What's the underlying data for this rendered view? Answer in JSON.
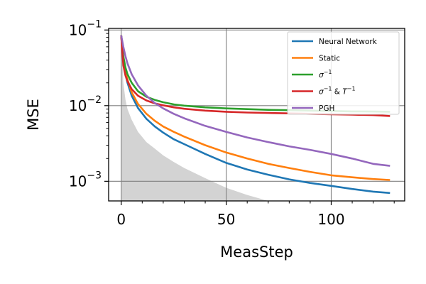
{
  "chart_data": {
    "type": "line",
    "xlabel": "MeasStep",
    "ylabel": "MSE",
    "xscale": "linear",
    "yscale": "log",
    "xlim": [
      -6,
      135
    ],
    "ylim": [
      0.00055,
      0.105
    ],
    "xticks": [
      0,
      50,
      100
    ],
    "xtick_labels": [
      "0",
      "50",
      "100"
    ],
    "yticks": [
      0.001,
      0.01,
      0.1
    ],
    "ytick_labels": [
      {
        "base": "10",
        "exp": "−3"
      },
      {
        "base": "10",
        "exp": "−2"
      },
      {
        "base": "10",
        "exp": "−1"
      }
    ],
    "grid": true,
    "legend_position": "top-right",
    "shaded_region": {
      "label": "",
      "color": "#d3d3d3",
      "x": [
        0,
        1,
        2,
        3,
        5,
        8,
        12,
        16,
        20,
        25,
        30,
        40,
        50,
        60,
        70
      ],
      "y": [
        0.085,
        0.02,
        0.012,
        0.009,
        0.0065,
        0.0045,
        0.0033,
        0.0027,
        0.0022,
        0.0018,
        0.0015,
        0.0011,
        0.00082,
        0.00066,
        0.00055
      ]
    },
    "series": [
      {
        "name": "Neural Network",
        "legend_label": {
          "text": "Neural Network"
        },
        "color": "#1f77b4",
        "x": [
          0,
          1,
          2,
          3,
          5,
          8,
          12,
          16,
          20,
          25,
          30,
          40,
          50,
          60,
          70,
          80,
          90,
          100,
          110,
          120,
          128
        ],
        "y": [
          0.085,
          0.04,
          0.026,
          0.02,
          0.0135,
          0.0093,
          0.0067,
          0.0053,
          0.0044,
          0.0036,
          0.0031,
          0.0023,
          0.00175,
          0.00143,
          0.00122,
          0.00106,
          0.00095,
          0.00087,
          0.00079,
          0.00073,
          0.0007
        ]
      },
      {
        "name": "Static",
        "legend_label": {
          "text": "Static"
        },
        "color": "#ff7f0e",
        "x": [
          0,
          1,
          2,
          3,
          5,
          8,
          12,
          16,
          20,
          25,
          30,
          40,
          50,
          60,
          70,
          80,
          90,
          100,
          110,
          120,
          128
        ],
        "y": [
          0.085,
          0.042,
          0.028,
          0.022,
          0.015,
          0.0105,
          0.0078,
          0.0063,
          0.0053,
          0.0045,
          0.0039,
          0.003,
          0.0024,
          0.002,
          0.0017,
          0.0015,
          0.00133,
          0.0012,
          0.00113,
          0.00107,
          0.00104
        ]
      },
      {
        "name": "σ^-1",
        "legend_label": {
          "text": "σ",
          "sup": "−1"
        },
        "color": "#2ca02c",
        "x": [
          0,
          1,
          2,
          3,
          5,
          8,
          12,
          16,
          20,
          25,
          30,
          40,
          50,
          60,
          70,
          80,
          90,
          100,
          110,
          120,
          128
        ],
        "y": [
          0.085,
          0.045,
          0.032,
          0.026,
          0.02,
          0.0155,
          0.0131,
          0.0119,
          0.0111,
          0.0104,
          0.01,
          0.0095,
          0.0092,
          0.009,
          0.0088,
          0.0087,
          0.0086,
          0.0085,
          0.0084,
          0.00835,
          0.0083
        ]
      },
      {
        "name": "σ^-1 & T^-1",
        "legend_label": {
          "text": "σ",
          "sup": "−1",
          "text2": " & ",
          "text3": "T",
          "sup2": "−1"
        },
        "color": "#d62728",
        "x": [
          0,
          1,
          2,
          3,
          5,
          8,
          12,
          16,
          20,
          25,
          30,
          40,
          50,
          60,
          70,
          80,
          90,
          100,
          110,
          120,
          128
        ],
        "y": [
          0.085,
          0.034,
          0.025,
          0.021,
          0.0165,
          0.0135,
          0.0117,
          0.0107,
          0.0101,
          0.0095,
          0.0091,
          0.0086,
          0.0083,
          0.0081,
          0.008,
          0.0079,
          0.0078,
          0.0077,
          0.0076,
          0.0075,
          0.0073
        ]
      },
      {
        "name": "PGH",
        "legend_label": {
          "text": "PGH"
        },
        "color": "#9467bd",
        "x": [
          0,
          1,
          2,
          3,
          5,
          8,
          12,
          16,
          20,
          25,
          30,
          40,
          50,
          60,
          70,
          80,
          90,
          100,
          110,
          120,
          128
        ],
        "y": [
          0.085,
          0.06,
          0.045,
          0.036,
          0.026,
          0.0185,
          0.0135,
          0.0108,
          0.0092,
          0.0078,
          0.0068,
          0.0054,
          0.0045,
          0.0038,
          0.0033,
          0.0029,
          0.0026,
          0.0023,
          0.002,
          0.0017,
          0.0016
        ]
      }
    ]
  }
}
